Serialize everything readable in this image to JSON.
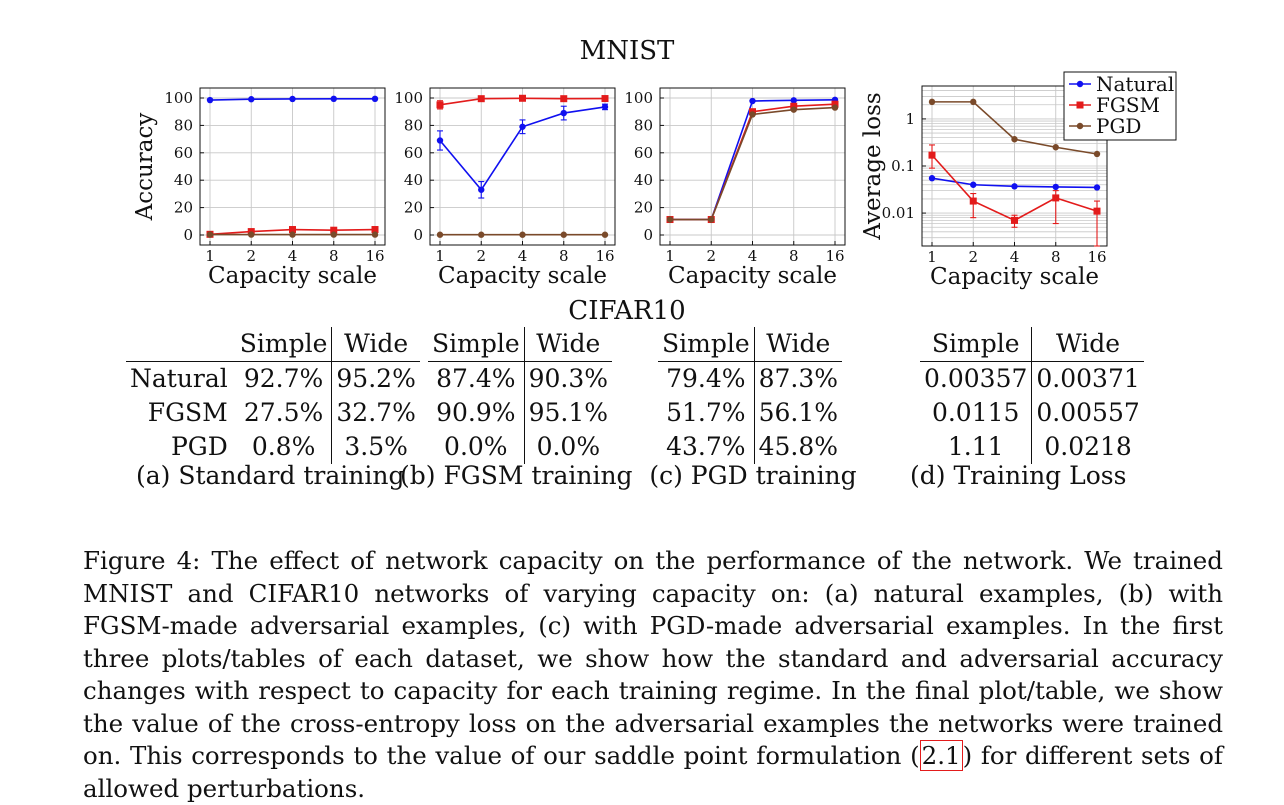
{
  "mnist_title": "MNIST",
  "cifar_title": "CIFAR10",
  "chart_data": [
    {
      "type": "line",
      "x": [
        1,
        2,
        4,
        8,
        16
      ],
      "xlabel": "Capacity scale",
      "ylabel": "Accuracy",
      "ylim": [
        0,
        100
      ],
      "yticks": [
        0,
        20,
        40,
        60,
        80,
        100
      ],
      "xticks": [
        "1",
        "2",
        "4",
        "8",
        "16"
      ],
      "grid": true,
      "series": [
        {
          "name": "Natural",
          "color": "#1010f0",
          "values": [
            98.5,
            99.1,
            99.3,
            99.4,
            99.4
          ],
          "err": [
            0,
            0,
            0,
            0,
            0
          ]
        },
        {
          "name": "FGSM",
          "color": "#e31b1b",
          "values": [
            0.5,
            2.5,
            4.0,
            3.5,
            4.0
          ],
          "err": [
            0,
            0,
            0,
            0,
            0
          ]
        },
        {
          "name": "PGD",
          "color": "#7a4a2a",
          "values": [
            0.3,
            0.3,
            0.3,
            0.3,
            0.3
          ],
          "err": [
            0,
            0,
            0,
            0,
            0
          ]
        }
      ]
    },
    {
      "type": "line",
      "x": [
        1,
        2,
        4,
        8,
        16
      ],
      "xlabel": "Capacity scale",
      "ylabel": "",
      "ylim": [
        0,
        100
      ],
      "yticks": [
        0,
        20,
        40,
        60,
        80,
        100
      ],
      "xticks": [
        "1",
        "2",
        "4",
        "8",
        "16"
      ],
      "grid": true,
      "series": [
        {
          "name": "Natural",
          "color": "#1010f0",
          "values": [
            69,
            33,
            79,
            89,
            93.5
          ],
          "err": [
            7,
            6,
            5,
            5,
            2
          ]
        },
        {
          "name": "FGSM",
          "color": "#e31b1b",
          "values": [
            95,
            99.5,
            99.8,
            99.5,
            99.6
          ],
          "err": [
            3,
            0.5,
            0.3,
            0.5,
            0.5
          ]
        },
        {
          "name": "PGD",
          "color": "#7a4a2a",
          "values": [
            0.2,
            0.2,
            0.2,
            0.2,
            0.2
          ],
          "err": [
            0,
            0,
            0,
            0,
            0
          ]
        }
      ]
    },
    {
      "type": "line",
      "x": [
        1,
        2,
        4,
        8,
        16
      ],
      "xlabel": "Capacity scale",
      "ylabel": "",
      "ylim": [
        0,
        100
      ],
      "yticks": [
        0,
        20,
        40,
        60,
        80,
        100
      ],
      "xticks": [
        "1",
        "2",
        "4",
        "8",
        "16"
      ],
      "grid": true,
      "series": [
        {
          "name": "Natural",
          "color": "#1010f0",
          "values": [
            11.3,
            11.3,
            97.8,
            98.3,
            98.7
          ],
          "err": [
            0,
            0,
            0,
            0,
            0
          ]
        },
        {
          "name": "FGSM",
          "color": "#e31b1b",
          "values": [
            11.3,
            11.3,
            90,
            94,
            95.5
          ],
          "err": [
            0,
            0,
            0,
            0,
            0
          ]
        },
        {
          "name": "PGD",
          "color": "#7a4a2a",
          "values": [
            11.3,
            11.3,
            88,
            91.5,
            93
          ],
          "err": [
            0,
            0,
            0,
            0,
            0
          ]
        }
      ]
    },
    {
      "type": "line",
      "x": [
        1,
        2,
        4,
        8,
        16
      ],
      "xlabel": "Capacity scale",
      "ylabel": "Average loss",
      "yscale": "log",
      "ylim": [
        0.002,
        5
      ],
      "yticks": [
        0.01,
        0.1,
        1
      ],
      "ytick_labels": [
        "0.01",
        "0.1",
        "1"
      ],
      "xticks": [
        "1",
        "2",
        "4",
        "8",
        "16"
      ],
      "grid": true,
      "legend": "top-right",
      "series": [
        {
          "name": "Natural",
          "color": "#1010f0",
          "values": [
            0.055,
            0.04,
            0.037,
            0.036,
            0.035
          ],
          "err_lo": [
            0.055,
            0.04,
            0.037,
            0.036,
            0.035
          ],
          "err_hi": [
            0.055,
            0.04,
            0.037,
            0.036,
            0.035
          ]
        },
        {
          "name": "FGSM",
          "color": "#e31b1b",
          "values": [
            0.17,
            0.018,
            0.007,
            0.021,
            0.011
          ],
          "err_lo": [
            0.09,
            0.008,
            0.005,
            0.006,
            0.002
          ],
          "err_hi": [
            0.28,
            0.026,
            0.009,
            0.03,
            0.018
          ]
        },
        {
          "name": "PGD",
          "color": "#7a4a2a",
          "values": [
            2.3,
            2.3,
            0.37,
            0.25,
            0.18
          ],
          "err_lo": [
            2.3,
            2.3,
            0.37,
            0.25,
            0.18
          ],
          "err_hi": [
            2.3,
            2.3,
            0.37,
            0.25,
            0.18
          ]
        }
      ]
    }
  ],
  "tables": [
    {
      "header": [
        "Simple",
        "Wide"
      ],
      "rows": [
        {
          "label": "Natural",
          "simple": "92.7%",
          "wide": "95.2%"
        },
        {
          "label": "FGSM",
          "simple": "27.5%",
          "wide": "32.7%"
        },
        {
          "label": "PGD",
          "simple": "0.8%",
          "wide": "3.5%"
        }
      ],
      "caption": "(a) Standard training"
    },
    {
      "header": [
        "Simple",
        "Wide"
      ],
      "rows": [
        {
          "simple": "87.4%",
          "wide": "90.3%"
        },
        {
          "simple": "90.9%",
          "wide": "95.1%"
        },
        {
          "simple": "0.0%",
          "wide": "0.0%"
        }
      ],
      "caption": "(b) FGSM training"
    },
    {
      "header": [
        "Simple",
        "Wide"
      ],
      "rows": [
        {
          "simple": "79.4%",
          "wide": "87.3%"
        },
        {
          "simple": "51.7%",
          "wide": "56.1%"
        },
        {
          "simple": "43.7%",
          "wide": "45.8%"
        }
      ],
      "caption": "(c) PGD training"
    },
    {
      "header": [
        "Simple",
        "Wide"
      ],
      "rows": [
        {
          "simple": "0.00357",
          "wide": "0.00371"
        },
        {
          "simple": "0.0115",
          "wide": "0.00557"
        },
        {
          "simple": "1.11",
          "wide": "0.0218"
        }
      ],
      "caption": "(d) Training Loss"
    }
  ],
  "caption": {
    "before_ref": "Figure 4: The effect of network capacity on the performance of the network. We trained MNIST and CIFAR10 networks of varying capacity on: (a) natural examples, (b) with FGSM-made adversarial examples, (c) with PGD-made adversarial examples. In the first three plots/tables of each dataset, we show how the standard and adversarial accuracy changes with respect to capacity for each training regime.  In the final plot/table, we show the value of the cross-entropy loss on the adversarial examples the networks were trained on. This corresponds to the value of our saddle point formulation (",
    "ref": "2.1",
    "after_ref": ") for different sets of allowed perturbations."
  }
}
